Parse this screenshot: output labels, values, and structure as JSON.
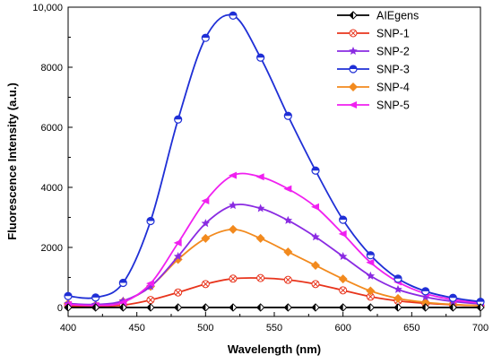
{
  "chart_data": {
    "type": "line",
    "xlabel": "Wavelength (nm)",
    "ylabel": "Fluorescence Intensity (a.u.)",
    "xlim": [
      400,
      700
    ],
    "ylim": [
      -300,
      10000
    ],
    "x_ticks": [
      400,
      450,
      500,
      550,
      600,
      650,
      700
    ],
    "x_tick_labels": [
      "400",
      "450",
      "500",
      "550",
      "600",
      "650",
      "700"
    ],
    "y_ticks": [
      0,
      2000,
      4000,
      6000,
      8000,
      10000
    ],
    "y_tick_labels": [
      "0",
      "2000",
      "4000",
      "6000",
      "8000",
      "10,000"
    ],
    "grid": false,
    "legend_position": "top-right",
    "series": [
      {
        "name": "AIEgens",
        "color": "#000000",
        "marker": "diamond-half",
        "x": [
          400,
          420,
          440,
          460,
          480,
          500,
          520,
          540,
          560,
          580,
          600,
          620,
          640,
          660,
          680,
          700
        ],
        "values": [
          0,
          0,
          0,
          0,
          0,
          0,
          0,
          0,
          0,
          0,
          0,
          0,
          0,
          0,
          0,
          0
        ]
      },
      {
        "name": "SNP-1",
        "color": "#e8341c",
        "marker": "circle-cross",
        "x": [
          400,
          420,
          440,
          460,
          480,
          500,
          520,
          540,
          560,
          580,
          600,
          620,
          640,
          660,
          680,
          700
        ],
        "values": [
          50,
          40,
          80,
          250,
          500,
          780,
          960,
          980,
          920,
          780,
          570,
          360,
          220,
          140,
          90,
          60
        ]
      },
      {
        "name": "SNP-2",
        "color": "#8a2be2",
        "marker": "star",
        "x": [
          400,
          420,
          440,
          460,
          480,
          500,
          520,
          540,
          560,
          580,
          600,
          620,
          640,
          660,
          680,
          700
        ],
        "values": [
          130,
          100,
          220,
          700,
          1700,
          2800,
          3400,
          3300,
          2900,
          2350,
          1700,
          1050,
          600,
          350,
          200,
          120
        ]
      },
      {
        "name": "SNP-3",
        "color": "#1f2fd6",
        "marker": "circle-half",
        "x": [
          400,
          420,
          440,
          460,
          480,
          500,
          520,
          540,
          560,
          580,
          600,
          620,
          640,
          660,
          680,
          700
        ],
        "values": [
          380,
          330,
          820,
          2880,
          6260,
          8980,
          9720,
          8320,
          6380,
          4560,
          2920,
          1740,
          960,
          540,
          320,
          190
        ]
      },
      {
        "name": "SNP-4",
        "color": "#f28a1e",
        "marker": "diamond",
        "x": [
          400,
          420,
          440,
          460,
          480,
          500,
          520,
          540,
          560,
          580,
          600,
          620,
          640,
          660,
          680,
          700
        ],
        "values": [
          130,
          80,
          200,
          700,
          1600,
          2300,
          2600,
          2300,
          1850,
          1400,
          950,
          550,
          300,
          170,
          100,
          60
        ]
      },
      {
        "name": "SNP-5",
        "color": "#f020f0",
        "marker": "triangle-left",
        "x": [
          400,
          420,
          440,
          460,
          480,
          500,
          520,
          540,
          560,
          580,
          600,
          620,
          640,
          660,
          680,
          700
        ],
        "values": [
          100,
          70,
          170,
          800,
          2150,
          3550,
          4400,
          4350,
          3950,
          3350,
          2450,
          1500,
          850,
          460,
          260,
          150
        ]
      }
    ]
  }
}
